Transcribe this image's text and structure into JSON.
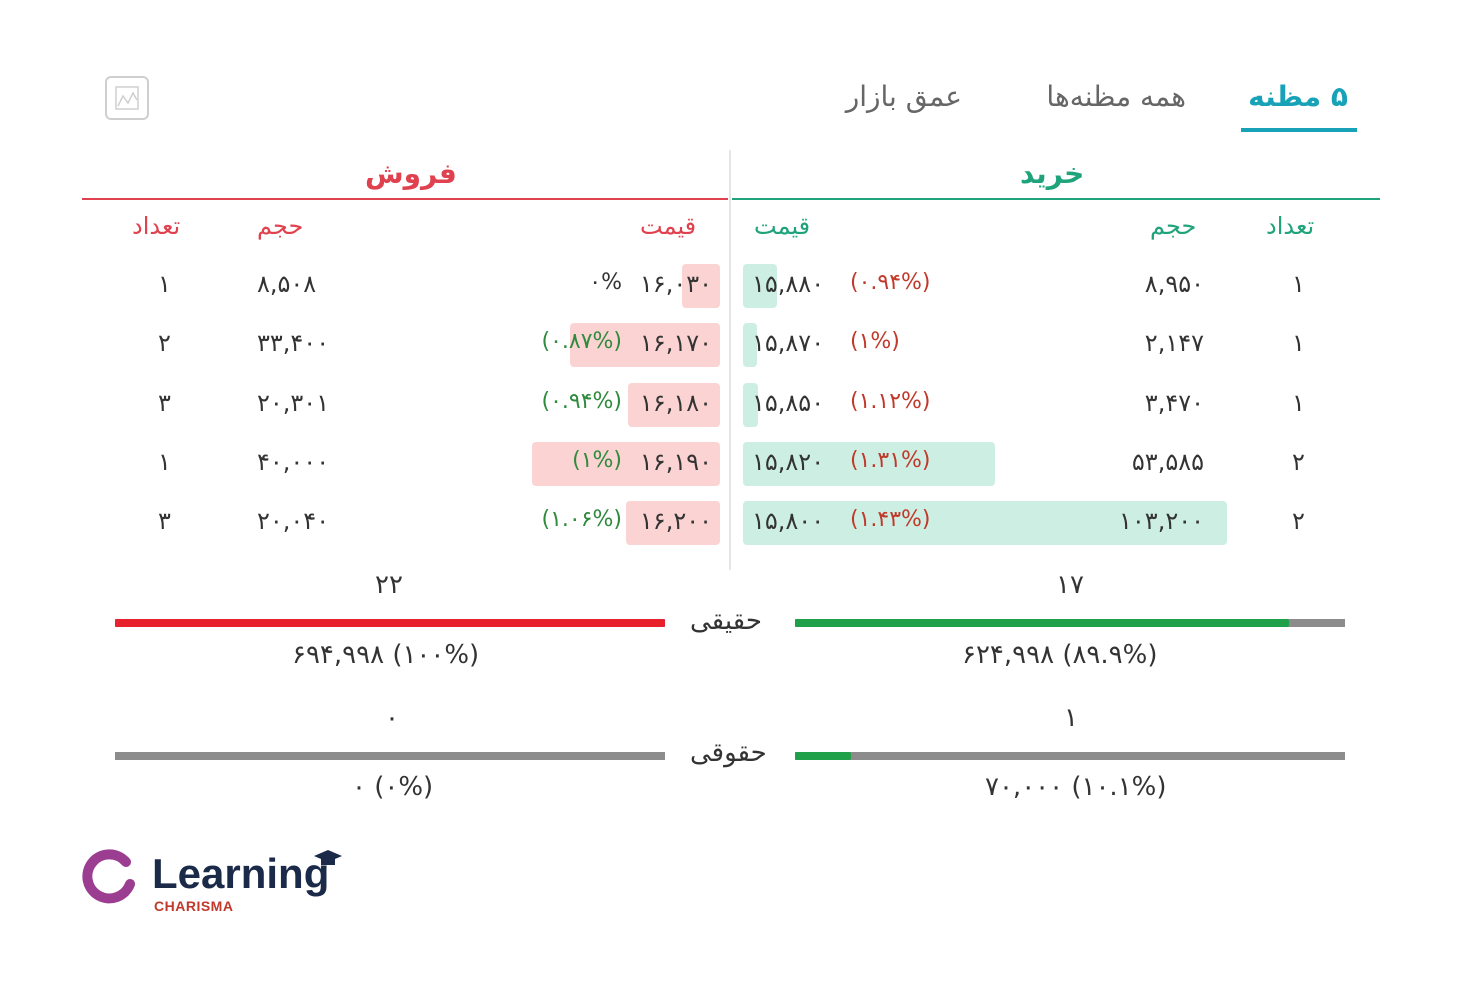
{
  "tabs": [
    {
      "label": "۵ مظنه",
      "active": true
    },
    {
      "label": "همه مظنه‌ها",
      "active": false
    },
    {
      "label": "عمق بازار",
      "active": false
    }
  ],
  "buy": {
    "title": "خرید",
    "headers": {
      "count": "تعداد",
      "volume": "حجم",
      "price": "قیمت"
    },
    "rows": [
      {
        "count": "۱",
        "volume": "۸,۹۵۰",
        "price": "۱۵,۸۸۰",
        "pct": "(۰.۹۴%)",
        "level": 0.07
      },
      {
        "count": "۱",
        "volume": "۲,۱۴۷",
        "price": "۱۵,۸۷۰",
        "pct": "(۱%)",
        "level": 0.02
      },
      {
        "count": "۱",
        "volume": "۳,۴۷۰",
        "price": "۱۵,۸۵۰",
        "pct": "(۱.۱۲%)",
        "level": 0.03
      },
      {
        "count": "۲",
        "volume": "۵۳,۵۸۵",
        "price": "۱۵,۸۲۰",
        "pct": "(۱.۳۱%)",
        "level": 0.52
      },
      {
        "count": "۲",
        "volume": "۱۰۳,۲۰۰",
        "price": "۱۵,۸۰۰",
        "pct": "(۱.۴۳%)",
        "level": 1.0
      }
    ]
  },
  "sell": {
    "title": "فروش",
    "headers": {
      "count": "تعداد",
      "volume": "حجم",
      "price": "قیمت"
    },
    "rows": [
      {
        "count": "۱",
        "volume": "۸,۵۰۸",
        "price": "۱۶,۰۳۰",
        "pct": "۰%",
        "level": 0.2
      },
      {
        "count": "۲",
        "volume": "۳۳,۴۰۰",
        "price": "۱۶,۱۷۰",
        "pct": "(۰.۸۷%)",
        "level": 0.8
      },
      {
        "count": "۳",
        "volume": "۲۰,۳۰۱",
        "price": "۱۶,۱۸۰",
        "pct": "(۰.۹۴%)",
        "level": 0.49
      },
      {
        "count": "۱",
        "volume": "۴۰,۰۰۰",
        "price": "۱۶,۱۹۰",
        "pct": "(۱%)",
        "level": 1.0
      },
      {
        "count": "۳",
        "volume": "۲۰,۰۴۰",
        "price": "۱۶,۲۰۰",
        "pct": "(۱.۰۶%)",
        "level": 0.5
      }
    ]
  },
  "summary": {
    "real": {
      "label": "حقیقی",
      "buy_count": "۱۷",
      "sell_count": "۲۲",
      "buy_volume": "۶۲۴,۹۹۸ (۸۹.۹%)",
      "sell_volume": "۶۹۴,۹۹۸ (۱۰۰%)",
      "buy_fraction": 0.899,
      "sell_fraction": 1.0
    },
    "legal": {
      "label": "حقوقی",
      "buy_count": "۱",
      "sell_count": "۰",
      "buy_volume": "۷۰,۰۰۰ (۱۰.۱%)",
      "sell_volume": "۰ (۰%)",
      "buy_fraction": 0.101,
      "sell_fraction": 0.0
    }
  },
  "logo": {
    "name": "Learning",
    "sub": "CHARISMA"
  },
  "colors": {
    "accent": "#17a2b8",
    "buy": "#1fa37a",
    "sell": "#e0414e",
    "bar_buy": "#21a04a",
    "bar_sell": "#e8222c",
    "bar_empty": "#8c8c8c"
  }
}
